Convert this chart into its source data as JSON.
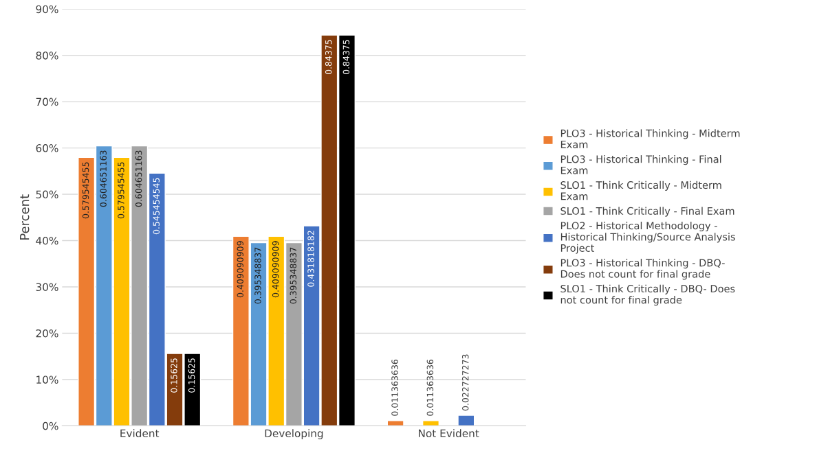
{
  "chart_data": {
    "type": "bar",
    "ylabel": "Percent",
    "categories": [
      "Evident",
      "Developing",
      "Not Evident"
    ],
    "series": [
      {
        "name": "PLO3 - Historical Thinking - Midterm Exam",
        "color": "#ed7d31",
        "values": [
          0.579545455,
          0.409090909,
          0.011363636
        ],
        "value_labels": [
          "0.579545455",
          "0.409090909",
          "0.011363636"
        ]
      },
      {
        "name": "PLO3 - Historical Thinking - Final Exam",
        "color": "#5b9bd5",
        "values": [
          0.604651163,
          0.395348837,
          null
        ],
        "value_labels": [
          "0.604651163",
          "0.395348837",
          null
        ]
      },
      {
        "name": "SLO1 - Think Critically - Midterm Exam",
        "color": "#ffc000",
        "values": [
          0.579545455,
          0.409090909,
          0.011363636
        ],
        "value_labels": [
          "0.579545455",
          "0.409090909",
          "0.011363636"
        ]
      },
      {
        "name": "SLO1 - Think Critically - Final Exam",
        "color": "#a5a5a5",
        "values": [
          0.604651163,
          0.395348837,
          null
        ],
        "value_labels": [
          "0.604651163",
          "0.395348837",
          null
        ]
      },
      {
        "name": "PLO2 - Historical Methodology - Historical Thinking/Source Analysis Project",
        "color": "#4472c4",
        "values": [
          0.545454545,
          0.431818182,
          0.022727273
        ],
        "value_labels": [
          "0.545454545",
          "0.431818182",
          "0.022727273"
        ]
      },
      {
        "name": "PLO3 - Historical Thinking - DBQ- Does not count for final grade",
        "color": "#843c0c",
        "values": [
          0.15625,
          0.84375,
          null
        ],
        "value_labels": [
          "0.15625",
          "0.84375",
          null
        ]
      },
      {
        "name": "SLO1 - Think Critically - DBQ- Does not count for final grade",
        "color": "#000000",
        "values": [
          0.15625,
          0.84375,
          null
        ],
        "value_labels": [
          "0.15625",
          "0.84375",
          null
        ]
      }
    ],
    "ylim": [
      0,
      0.9
    ],
    "yticks": [
      {
        "value": 0,
        "label": "0%"
      },
      {
        "value": 0.1,
        "label": "10%"
      },
      {
        "value": 0.2,
        "label": "20%"
      },
      {
        "value": 0.3,
        "label": "30%"
      },
      {
        "value": 0.4,
        "label": "40%"
      },
      {
        "value": 0.5,
        "label": "50%"
      },
      {
        "value": 0.6,
        "label": "60%"
      },
      {
        "value": 0.7,
        "label": "70%"
      },
      {
        "value": 0.8,
        "label": "80%"
      },
      {
        "value": 0.9,
        "label": "90%"
      }
    ],
    "grid": "y",
    "legend": "right"
  }
}
